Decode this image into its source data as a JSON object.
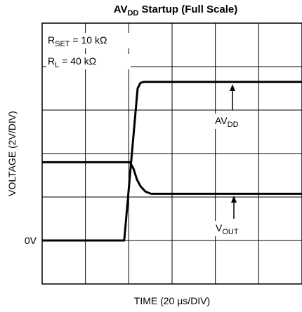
{
  "chart_data": {
    "type": "line",
    "title": {
      "main": "AV",
      "sub": "DD",
      "rest": " Startup (Full Scale)"
    },
    "xlabel": "TIME (20 µs/DIV)",
    "ylabel": "VOLTAGE (2V/DIV)",
    "xlim": [
      0,
      120
    ],
    "ylim": [
      -2,
      10
    ],
    "xgrid": [
      0,
      20,
      40,
      60,
      80,
      100,
      120
    ],
    "ygrid": [
      -2,
      0,
      2,
      4,
      6,
      8,
      10
    ],
    "yticks": [
      {
        "value": 0,
        "label": "0V"
      }
    ],
    "grid": true,
    "annotations": [
      {
        "main": "R",
        "sub": "SET",
        "rest": " = 10 kΩ"
      },
      {
        "main": "R",
        "sub": "L",
        "rest": " = 40 kΩ"
      }
    ],
    "x": [
      0,
      37.9,
      44.1,
      45.4,
      47,
      120
    ],
    "series": [
      {
        "label": {
          "main": "AV",
          "sub": "DD"
        },
        "color": "#000000",
        "x": [
          0,
          37.9,
          44.1,
          45.4,
          47,
          120
        ],
        "values": [
          0,
          0,
          7.0,
          7.25,
          7.3,
          7.3
        ]
      },
      {
        "label": {
          "main": "V",
          "sub": "OUT"
        },
        "color": "#000000",
        "x": [
          0,
          40.5,
          42.2,
          43.8,
          45.4,
          47.7,
          50.3,
          120
        ],
        "values": [
          3.6,
          3.6,
          3.3,
          2.8,
          2.5,
          2.25,
          2.15,
          2.15
        ]
      }
    ]
  }
}
